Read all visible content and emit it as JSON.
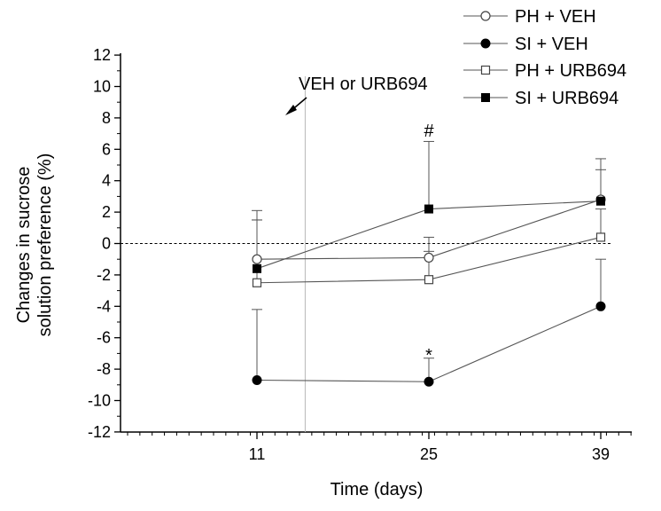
{
  "chart_data": {
    "type": "line",
    "xlabel": "Time (days)",
    "ylabel_line1": "Changes in sucrose",
    "ylabel_line2": "solution preference (%)",
    "x": [
      11,
      25,
      39
    ],
    "xticks": [
      "11",
      "25",
      "39"
    ],
    "ylim": [
      -12,
      12
    ],
    "yticks": [
      -12,
      -10,
      -8,
      -6,
      -4,
      -2,
      0,
      2,
      4,
      6,
      8,
      10,
      12
    ],
    "reference_line_y": 0,
    "treatment_marker_x": 15,
    "annotation": "VEH or URB694",
    "series": [
      {
        "name": "PH + VEH",
        "marker": "open-circle",
        "values": [
          -1.0,
          -0.9,
          2.8
        ],
        "error": [
          3.1,
          1.3,
          1.9
        ]
      },
      {
        "name": "SI + VEH",
        "marker": "filled-circle",
        "values": [
          -8.7,
          -8.8,
          -4.0
        ],
        "error": [
          4.5,
          1.5,
          3.0
        ]
      },
      {
        "name": "PH + URB694",
        "marker": "open-square",
        "values": [
          -2.5,
          -2.3,
          0.4
        ],
        "error": [
          4.0,
          1.8,
          1.8
        ]
      },
      {
        "name": "SI + URB694",
        "marker": "filled-square",
        "values": [
          -1.6,
          2.2,
          2.7
        ],
        "error": [
          3.1,
          4.3,
          2.7
        ]
      }
    ],
    "significance_marks": [
      {
        "label": "#",
        "x": 25,
        "y": 7.2
      },
      {
        "label": "*",
        "x": 25,
        "y": -7.1
      }
    ],
    "legend_position": "top-right",
    "grid": false
  }
}
